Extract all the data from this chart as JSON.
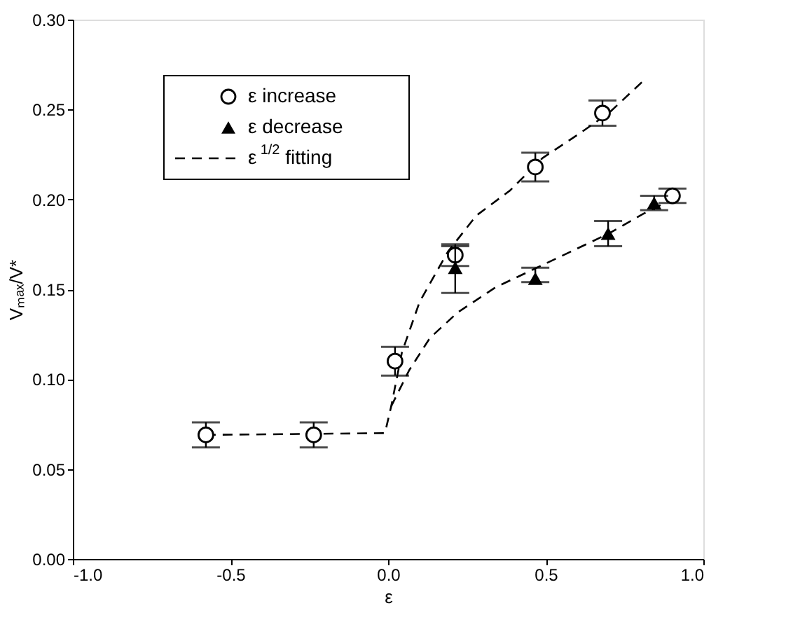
{
  "chart_data": {
    "type": "scatter",
    "xlabel": "ε",
    "ylabel": "Vₘₐₓ/V*",
    "xlim": [
      -1.0,
      1.0
    ],
    "xticks": [
      {
        "value": -1.0,
        "label": "-1.0"
      },
      {
        "value": -0.5,
        "label": "-0.5"
      },
      {
        "value": 0.0,
        "label": "0.0"
      },
      {
        "value": 0.5,
        "label": "0.5"
      },
      {
        "value": 1.0,
        "label": "1.0"
      }
    ],
    "ylim": [
      0,
      0.3
    ],
    "yticks": [
      {
        "value": 0,
        "label": "0.00"
      },
      {
        "value": 0.05,
        "label": "0.05"
      },
      {
        "value": 0.1,
        "label": "0.10"
      },
      {
        "value": 0.15,
        "label": "0.15"
      },
      {
        "value": 0.2,
        "label": "0.20"
      },
      {
        "value": 0.25,
        "label": "0.25"
      },
      {
        "value": 0.3,
        "label": "0.30"
      }
    ],
    "grid": false,
    "legend": "top left",
    "series": [
      {
        "name": "ε increase",
        "marker": "circle",
        "color": "#000000",
        "x": [
          -0.578,
          -0.236,
          0.022,
          0.213,
          0.467,
          0.68,
          0.902
        ],
        "values": [
          0.069,
          0.069,
          0.11,
          0.169,
          0.218,
          0.248,
          0.202
        ],
        "errors": [
          0.007,
          0.007,
          0.008,
          0.006,
          0.008,
          0.007,
          0.004
        ]
      },
      {
        "name": "ε decrease",
        "marker": "triangle",
        "color": "#000000",
        "x": [
          0.213,
          0.467,
          0.698,
          0.844
        ],
        "values": [
          0.162,
          0.156,
          0.181,
          0.198
        ],
        "errors": [
          [
            0.148,
            0.174
          ],
          [
            0.154,
            0.162
          ],
          [
            0.174,
            0.188
          ],
          0.004
        ]
      },
      {
        "name": "ε$^{1/2}$ fitting",
        "type": "line",
        "line_style": "dashed",
        "color": "#000000",
        "x": [
          -0.578,
          -0.01,
          0.01,
          0.044,
          0.1,
          0.19,
          0.28,
          0.387,
          0.49,
          0.61,
          0.7,
          0.81
        ],
        "values": [
          0.069,
          0.07,
          0.085,
          0.115,
          0.143,
          0.171,
          0.191,
          0.205,
          0.223,
          0.237,
          0.248,
          0.266
        ]
      },
      {
        "type": "line",
        "line_style": "dashed",
        "color": "#000000",
        "x": [
          0.01,
          0.067,
          0.133,
          0.22,
          0.34,
          0.46,
          0.58,
          0.7,
          0.81,
          0.9
        ],
        "values": [
          0.085,
          0.105,
          0.123,
          0.137,
          0.151,
          0.161,
          0.171,
          0.181,
          0.192,
          0.2
        ]
      }
    ]
  }
}
